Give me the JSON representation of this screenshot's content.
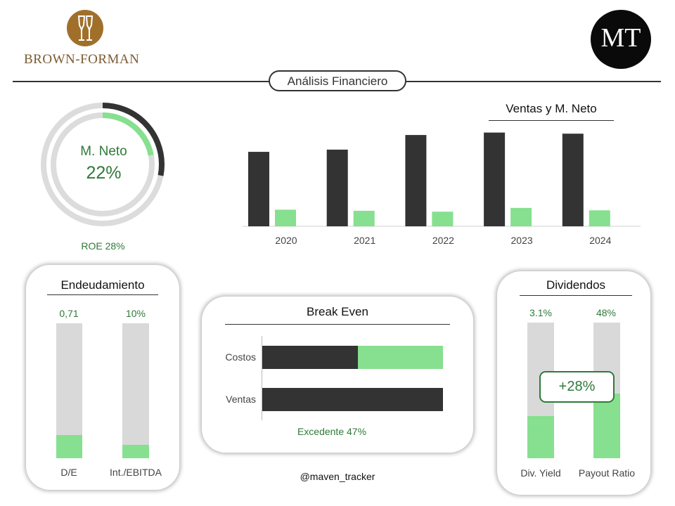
{
  "header": {
    "brand_logo_text": "BROWN-FORMAN",
    "badge_text": "MT",
    "title": "Análisis Financiero"
  },
  "donut": {
    "label": "M. Neto",
    "value_text": "22%",
    "roe_text": "ROE 28%",
    "net_margin_fraction": 0.22,
    "roe_fraction": 0.28
  },
  "chart_data": [
    {
      "type": "bar",
      "title": "Ventas y M. Neto",
      "categories": [
        "2020",
        "2021",
        "2022",
        "2023",
        "2024"
      ],
      "series": [
        {
          "name": "Ventas",
          "color": "#333333",
          "values": [
            3.36,
            3.46,
            4.12,
            4.23,
            4.18
          ]
        },
        {
          "name": "M. Neto",
          "color": "#86e08f",
          "values": [
            0.75,
            0.7,
            0.66,
            0.83,
            0.72
          ]
        }
      ],
      "xlabel": "",
      "ylabel": "",
      "ylim": [
        0,
        4.25
      ],
      "grid": false
    },
    {
      "type": "bar",
      "title": "Endeudamiento",
      "categories": [
        "D/E",
        "Int./EBITDA"
      ],
      "value_labels": [
        "0,71",
        "10%"
      ],
      "fill_fraction": [
        0.17,
        0.1
      ]
    },
    {
      "type": "bar",
      "orientation": "horizontal",
      "title": "Break Even",
      "categories": [
        "Costos",
        "Ventas"
      ],
      "series": [
        {
          "name": "Costos",
          "color": "#333333",
          "values": [
            53,
            0
          ]
        },
        {
          "name": "Excedente",
          "color": "#86e08f",
          "values": [
            47,
            0
          ]
        },
        {
          "name": "Ventas",
          "color": "#333333",
          "values": [
            0,
            100
          ]
        }
      ],
      "annotation": "Excedente 47%"
    },
    {
      "type": "bar",
      "title": "Dividendos",
      "categories": [
        "Div. Yield",
        "Payout Ratio"
      ],
      "value_labels": [
        "3.1%",
        "48%"
      ],
      "fill_fraction": [
        0.31,
        0.48
      ],
      "annotation": "+28%"
    }
  ],
  "footer": {
    "handle": "@maven_tracker"
  },
  "colors": {
    "accent_green": "#86e08f",
    "text_green": "#2f7a3a",
    "dark": "#333333",
    "track": "#d9d9d9"
  }
}
